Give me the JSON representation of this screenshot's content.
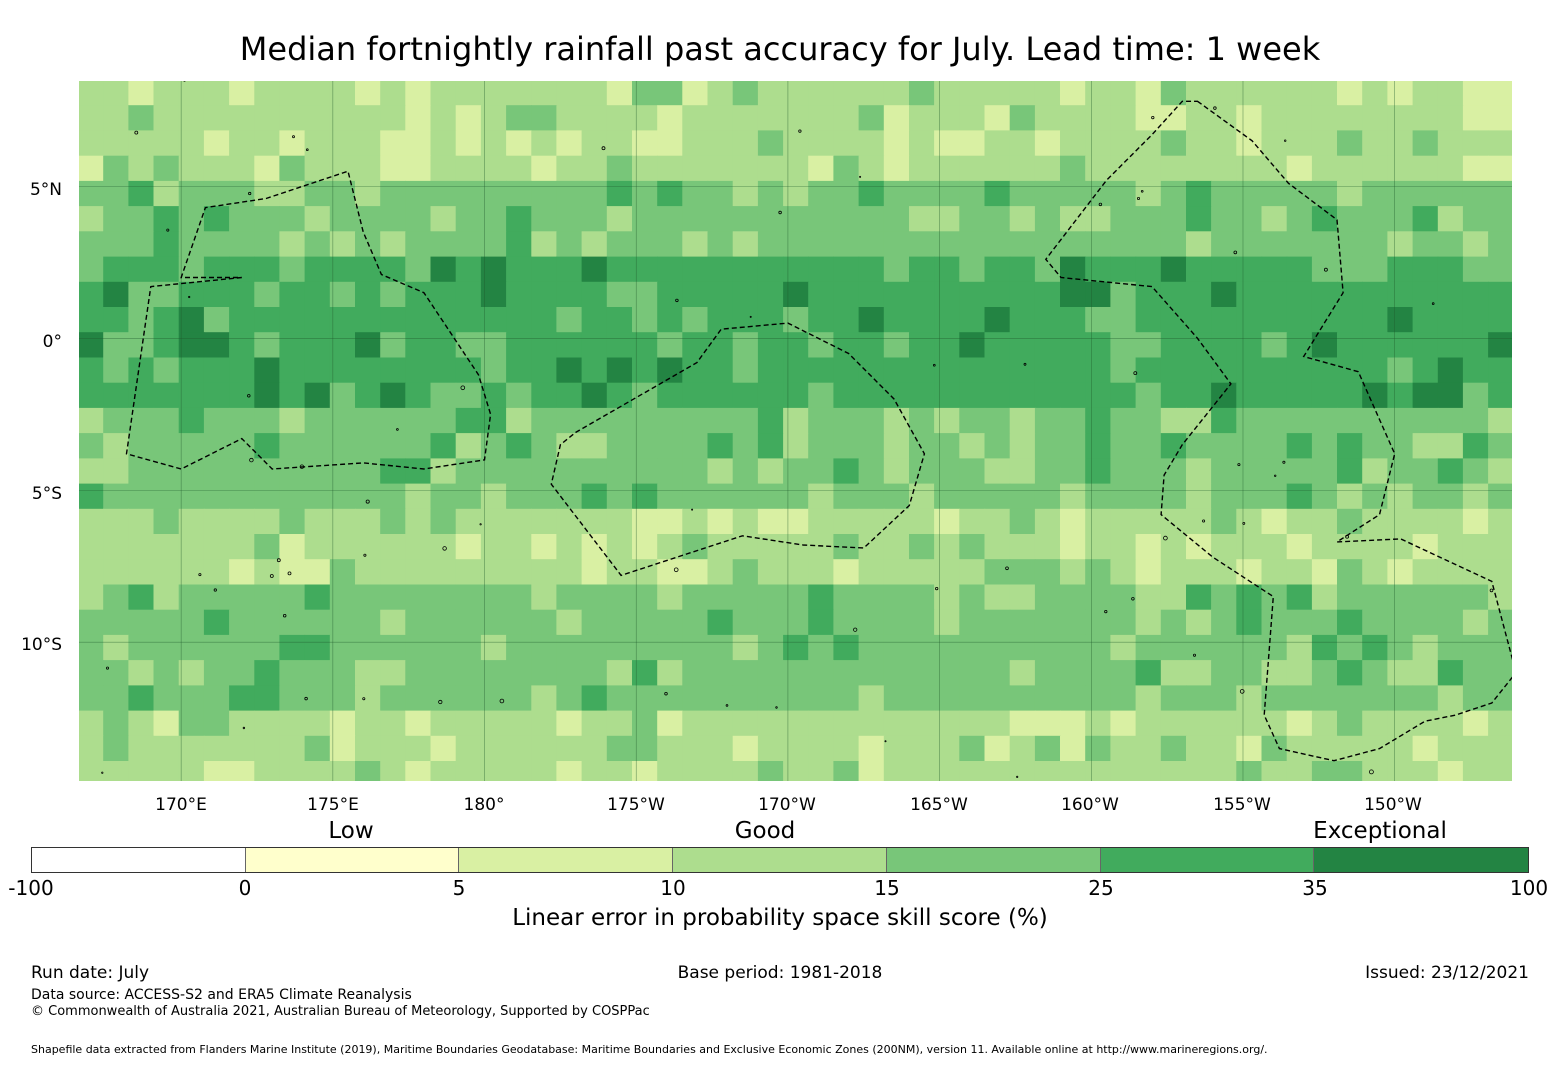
{
  "title": "Median fortnightly rainfall past accuracy for July. Lead time: 1 week",
  "map": {
    "lon_range": [
      166.6,
      213.9
    ],
    "lat_range": [
      -14.6,
      8.5
    ],
    "cell_degrees": 0.83,
    "lat_labels": [
      "5°N",
      "0°",
      "5°S",
      "10°S"
    ],
    "lat_values": [
      5,
      0,
      -5,
      -10
    ],
    "lon_labels": [
      "170°E",
      "175°E",
      "180°",
      "175°W",
      "170°W",
      "165°W",
      "160°W",
      "155°W",
      "150°W"
    ],
    "lon_values": [
      170,
      175,
      180,
      185,
      190,
      195,
      200,
      205,
      210
    ],
    "category_bands": [
      {
        "lat_from": 8.5,
        "lat_to": 5.0,
        "level": 3
      },
      {
        "lat_from": 5.0,
        "lat_to": 2.8,
        "level": 4
      },
      {
        "lat_from": 2.8,
        "lat_to": -2.0,
        "level": 5
      },
      {
        "lat_from": -2.0,
        "lat_to": -5.5,
        "level": 4
      },
      {
        "lat_from": -5.5,
        "lat_to": -8.0,
        "level": 3
      },
      {
        "lat_from": -8.0,
        "lat_to": -12.0,
        "level": 4
      },
      {
        "lat_from": -12.0,
        "lat_to": -14.6,
        "level": 3
      }
    ],
    "eez_outlines": [
      [
        [
          172,
          2
        ],
        [
          169,
          1.7
        ],
        [
          168.2,
          -3.8
        ],
        [
          170,
          -4.3
        ],
        [
          172,
          -3.3
        ],
        [
          173,
          -4.3
        ],
        [
          176,
          -4.1
        ],
        [
          178,
          -4.3
        ],
        [
          180,
          -4
        ],
        [
          180.2,
          -2.5
        ],
        [
          179.8,
          -1.2
        ],
        [
          178,
          1.5
        ],
        [
          176.6,
          2.1
        ],
        [
          176,
          3.5
        ],
        [
          175.5,
          5.5
        ],
        [
          172.8,
          4.6
        ],
        [
          170.8,
          4.3
        ],
        [
          170,
          2
        ]
      ],
      [
        [
          183,
          -3.1
        ],
        [
          187,
          -0.8
        ],
        [
          187.8,
          0.3
        ],
        [
          190,
          0.5
        ],
        [
          192,
          -0.5
        ],
        [
          193.5,
          -2
        ],
        [
          194.5,
          -3.8
        ],
        [
          194,
          -5.5
        ],
        [
          192.5,
          -6.9
        ],
        [
          190.5,
          -6.8
        ],
        [
          188.5,
          -6.5
        ],
        [
          184.5,
          -7.8
        ],
        [
          182.2,
          -4.8
        ],
        [
          182.5,
          -3.5
        ]
      ],
      [
        [
          203.5,
          7.8
        ],
        [
          205.3,
          6.5
        ],
        [
          206.5,
          5.1
        ],
        [
          208.1,
          3.9
        ],
        [
          208.3,
          1.5
        ],
        [
          207,
          -0.6
        ],
        [
          208.8,
          -1.1
        ],
        [
          210,
          -3.8
        ],
        [
          209.5,
          -5.8
        ],
        [
          208.1,
          -6.7
        ],
        [
          210.2,
          -6.6
        ],
        [
          213.2,
          -8
        ],
        [
          214,
          -11
        ],
        [
          213.2,
          -12
        ],
        [
          212,
          -12.4
        ],
        [
          211,
          -12.6
        ],
        [
          209.5,
          -13.5
        ],
        [
          208,
          -13.9
        ],
        [
          206.2,
          -13.5
        ],
        [
          205.7,
          -12.4
        ],
        [
          206,
          -8.5
        ],
        [
          204,
          -7.2
        ],
        [
          202.3,
          -5.8
        ],
        [
          202.4,
          -4.5
        ],
        [
          203,
          -3.5
        ],
        [
          204.6,
          -1.5
        ],
        [
          203.5,
          0
        ],
        [
          202,
          1.7
        ],
        [
          199,
          2
        ],
        [
          198.5,
          2.6
        ],
        [
          200.5,
          5.2
        ],
        [
          202,
          6.7
        ],
        [
          203,
          7.8
        ]
      ]
    ]
  },
  "legend": {
    "colors": [
      "#ffffff",
      "#ffffcc",
      "#d9f0a3",
      "#addd8e",
      "#78c679",
      "#41ab5d",
      "#238443"
    ],
    "ticks": [
      "-100",
      "0",
      "5",
      "10",
      "15",
      "25",
      "35",
      "100"
    ],
    "categories": [
      "Low",
      "Good",
      "Exceptional"
    ],
    "label": "Linear error in probability space skill score (%)"
  },
  "footer": {
    "run_date": "Run date: July",
    "base_period": "Base period: 1981-2018",
    "issued": "Issued: 23/12/2021",
    "data_source": "Data source: ACCESS-S2 and ERA5 Climate Reanalysis",
    "copyright": "© Commonwealth of Australia 2021, Australian Bureau of Meteorology, Supported by COSPPac",
    "shapefile": "Shapefile data extracted from Flanders Marine Institute (2019), Maritime Boundaries Geodatabase: Maritime Boundaries and Exclusive Economic Zones (200NM), version 11. Available online at http://www.marineregions.org/."
  }
}
